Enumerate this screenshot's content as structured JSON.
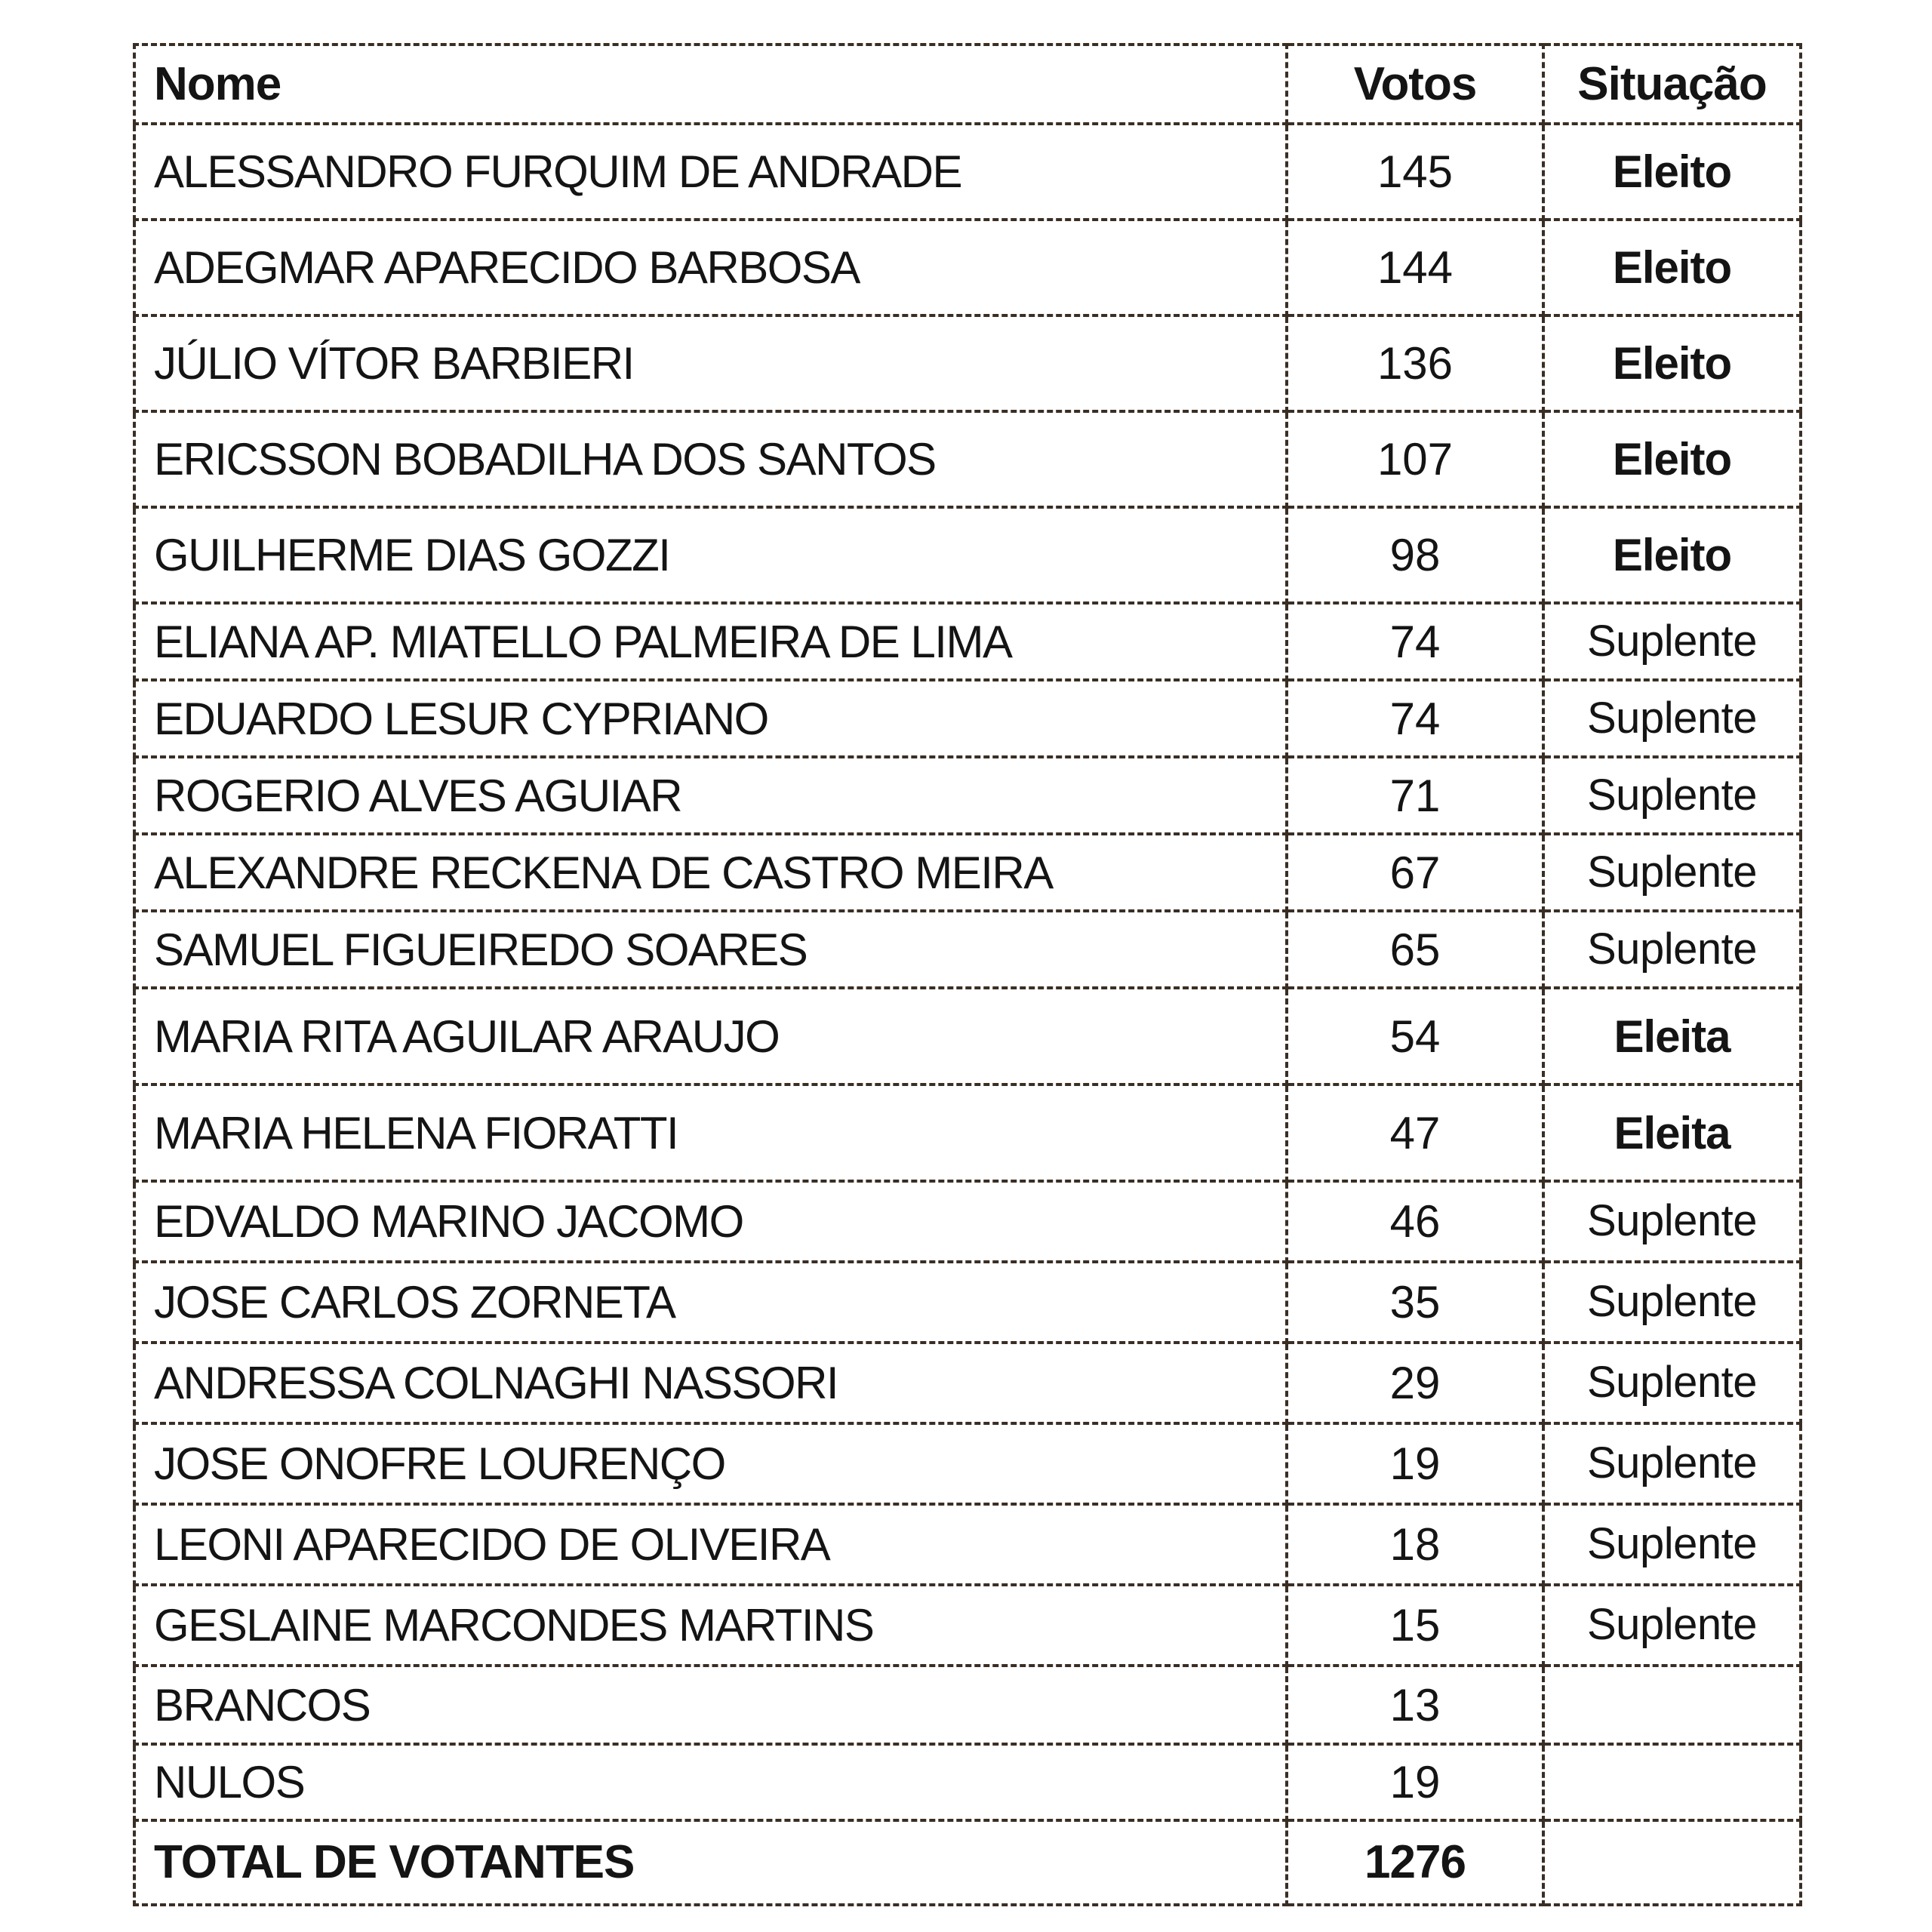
{
  "page": {
    "background": "#ffffff"
  },
  "table": {
    "colors": {
      "border": "#3a2e24",
      "text": "#141414",
      "background": "#ffffff"
    },
    "headers": {
      "nome": "Nome",
      "votos": "Votos",
      "situacao": "Situação"
    },
    "rows": [
      {
        "nome": "ALESSANDRO FURQUIM DE ANDRADE",
        "votos": "145",
        "situacao": "Eleito"
      },
      {
        "nome": "ADEGMAR APARECIDO BARBOSA",
        "votos": "144",
        "situacao": "Eleito"
      },
      {
        "nome": "JÚLIO VÍTOR BARBIERI",
        "votos": "136",
        "situacao": "Eleito"
      },
      {
        "nome": "ERICSSON BOBADILHA DOS SANTOS",
        "votos": "107",
        "situacao": "Eleito"
      },
      {
        "nome": "GUILHERME DIAS GOZZI",
        "votos": "98",
        "situacao": "Eleito"
      },
      {
        "nome": "ELIANA AP. MIATELLO PALMEIRA DE LIMA",
        "votos": "74",
        "situacao": "Suplente"
      },
      {
        "nome": "EDUARDO LESUR CYPRIANO",
        "votos": "74",
        "situacao": "Suplente"
      },
      {
        "nome": "ROGERIO ALVES AGUIAR",
        "votos": "71",
        "situacao": "Suplente"
      },
      {
        "nome": "ALEXANDRE RECKENA DE CASTRO MEIRA",
        "votos": "67",
        "situacao": "Suplente"
      },
      {
        "nome": "SAMUEL FIGUEIREDO SOARES",
        "votos": "65",
        "situacao": "Suplente"
      },
      {
        "nome": "MARIA RITA AGUILAR ARAUJO",
        "votos": "54",
        "situacao": "Eleita"
      },
      {
        "nome": "MARIA HELENA FIORATTI",
        "votos": "47",
        "situacao": "Eleita"
      },
      {
        "nome": "EDVALDO MARINO JACOMO",
        "votos": "46",
        "situacao": "Suplente"
      },
      {
        "nome": "JOSE CARLOS ZORNETA",
        "votos": "35",
        "situacao": "Suplente"
      },
      {
        "nome": "ANDRESSA COLNAGHI NASSORI",
        "votos": "29",
        "situacao": "Suplente"
      },
      {
        "nome": "JOSE ONOFRE LOURENÇO",
        "votos": "19",
        "situacao": "Suplente"
      },
      {
        "nome": "LEONI APARECIDO DE OLIVEIRA",
        "votos": "18",
        "situacao": "Suplente"
      },
      {
        "nome": "GESLAINE MARCONDES MARTINS",
        "votos": "15",
        "situacao": "Suplente"
      },
      {
        "nome": "BRANCOS",
        "votos": "13",
        "situacao": ""
      },
      {
        "nome": "NULOS",
        "votos": "19",
        "situacao": ""
      },
      {
        "nome": "TOTAL DE VOTANTES",
        "votos": "1276",
        "situacao": "",
        "total": true
      }
    ]
  }
}
